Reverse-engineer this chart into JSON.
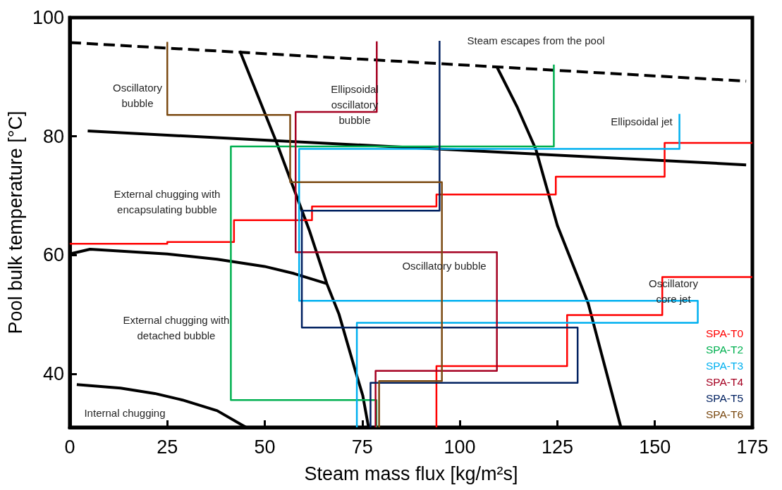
{
  "chart_data": {
    "type": "line",
    "xlabel": "Steam mass flux [kg/m²s]",
    "ylabel": "Pool bulk temperature [°C]",
    "xlim": [
      0,
      175
    ],
    "xticks": [
      0,
      25,
      50,
      75,
      100,
      125,
      150,
      175
    ],
    "ylim": [
      31,
      100
    ],
    "yticks": [
      40,
      60,
      80,
      100
    ],
    "grid": false,
    "legend": "bottom right",
    "marker": "none",
    "series": [
      {
        "color": "#000000",
        "line_style": "dashed",
        "x": [
          0,
          173.4
        ],
        "values": [
          95.8,
          89.3
        ]
      },
      {
        "color": "#000000",
        "x": [
          4.6,
          173.4
        ],
        "values": [
          80.9,
          75.2
        ]
      },
      {
        "color": "#000000",
        "x": [
          43.6,
          53,
          61.4,
          65.9,
          69,
          73.4,
          75.1,
          76.6
        ],
        "values": [
          94.4,
          79,
          64.2,
          55.2,
          50.1,
          40.1,
          36.4,
          31
        ]
      },
      {
        "color": "#000000",
        "x": [
          109.5,
          114.8,
          119.5,
          125,
          132.9,
          141.3
        ],
        "values": [
          91.7,
          84.8,
          77.8,
          65,
          51.9,
          31
        ]
      },
      {
        "color": "#000000",
        "x": [
          0,
          5.2,
          25,
          37.8,
          49.9,
          57.5,
          65.9
        ],
        "values": [
          60.2,
          61,
          60.2,
          59.3,
          58.1,
          56.9,
          55.2
        ]
      },
      {
        "color": "#000000",
        "x": [
          1.8,
          13,
          21.8,
          28.9,
          37.8,
          45.2
        ],
        "values": [
          38.2,
          37.6,
          36.7,
          35.6,
          33.8,
          31
        ]
      },
      {
        "name": "SPA-T0",
        "color": "#ff0000",
        "x": [
          0,
          25,
          25,
          42.1,
          42.1,
          62.1,
          62.1,
          94,
          94,
          124.6,
          124.6,
          152.5,
          152.5,
          175,
          null,
          94,
          94,
          127.5,
          127.5,
          151.9,
          151.9,
          175
        ],
        "values": [
          61.9,
          61.9,
          62.2,
          62.2,
          65.9,
          65.9,
          68.2,
          68.2,
          70.2,
          70.2,
          73.2,
          73.2,
          78.9,
          78.9,
          null,
          31,
          41.3,
          41.3,
          49.9,
          49.9,
          56.3,
          56.3
        ]
      },
      {
        "name": "SPA-T2",
        "color": "#00b050",
        "x": [
          124.1,
          124.1,
          41.3,
          41.3,
          78.6,
          78.6
        ],
        "values": [
          92.1,
          78.3,
          78.3,
          35.6,
          35.6,
          31
        ]
      },
      {
        "name": "SPA-T3",
        "color": "#00b0f0",
        "x": [
          156.3,
          156.3,
          58.8,
          58.8,
          161,
          161,
          73.6,
          73.6
        ],
        "values": [
          83.8,
          77.9,
          77.9,
          52.3,
          52.3,
          48.6,
          48.6,
          31
        ]
      },
      {
        "name": "SPA-T4",
        "color": "#a50021",
        "x": [
          78.7,
          78.7,
          57.9,
          57.9,
          109.5,
          109.5,
          78.4,
          78.4
        ],
        "values": [
          96,
          84.1,
          84.1,
          60.5,
          60.5,
          40.5,
          40.5,
          31
        ]
      },
      {
        "name": "SPA-T5",
        "color": "#002060",
        "x": [
          94.8,
          94.8,
          59.5,
          59.5,
          130.2,
          130.2,
          77.1,
          77.1
        ],
        "values": [
          96.1,
          67.5,
          67.5,
          47.8,
          47.8,
          38.5,
          38.5,
          31
        ]
      },
      {
        "name": "SPA-T6",
        "color": "#7b4a12",
        "x": [
          25,
          25,
          56.5,
          56.5,
          95.4,
          95.4,
          79.3,
          79.3
        ],
        "values": [
          95.9,
          83.6,
          83.6,
          72.3,
          72.3,
          38.8,
          38.8,
          31
        ]
      }
    ],
    "annotations": [
      "Steam escapes from the pool",
      "Oscillatory\nbubble",
      "Ellipsoidal\noscillatory\nbubble",
      "Ellipsoidal jet",
      "External chugging with\nencapsulating bubble",
      "Oscillatory bubble",
      "Oscillatory\ncore jet",
      "External chugging with\ndetached bubble",
      "Internal chugging"
    ]
  }
}
